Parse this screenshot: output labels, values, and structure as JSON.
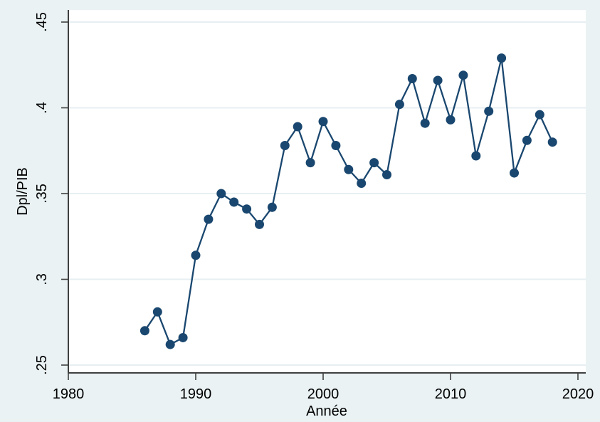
{
  "figure": {
    "background_color": "#eaf2f3",
    "plot_background_color": "#ffffff",
    "grid_color": "#e7eff2",
    "axis_color": "#3f3f3f",
    "text_color": "#000000",
    "series_color": "#1a476f"
  },
  "chart_data": {
    "type": "line",
    "title": "",
    "xlabel": "Année",
    "ylabel": "Dpl/PIB",
    "legend": "none",
    "grid": "horizontal",
    "marker": "filled-circle",
    "x": [
      1986,
      1987,
      1988,
      1989,
      1990,
      1991,
      1992,
      1993,
      1994,
      1995,
      1996,
      1997,
      1998,
      1999,
      2000,
      2001,
      2002,
      2003,
      2004,
      2005,
      2006,
      2007,
      2008,
      2009,
      2010,
      2011,
      2012,
      2013,
      2014,
      2015,
      2016,
      2017,
      2018
    ],
    "y": [
      0.27,
      0.281,
      0.262,
      0.266,
      0.314,
      0.335,
      0.35,
      0.345,
      0.341,
      0.332,
      0.342,
      0.378,
      0.389,
      0.368,
      0.392,
      0.378,
      0.364,
      0.356,
      0.368,
      0.361,
      0.402,
      0.417,
      0.391,
      0.416,
      0.393,
      0.419,
      0.372,
      0.398,
      0.429,
      0.362,
      0.381,
      0.396,
      0.38
    ],
    "xticks": [
      1980,
      1990,
      2000,
      2010,
      2020
    ],
    "xtick_labels": [
      "1980",
      "1990",
      "2000",
      "2010",
      "2020"
    ],
    "ytick_values": [
      0.25,
      0.3,
      0.35,
      0.4,
      0.45
    ],
    "ytick_labels": [
      ".25",
      ".3",
      ".35",
      ".4",
      ".45"
    ],
    "xlim": [
      1980,
      2020.6
    ],
    "ylim": [
      0.2455,
      0.457
    ]
  }
}
